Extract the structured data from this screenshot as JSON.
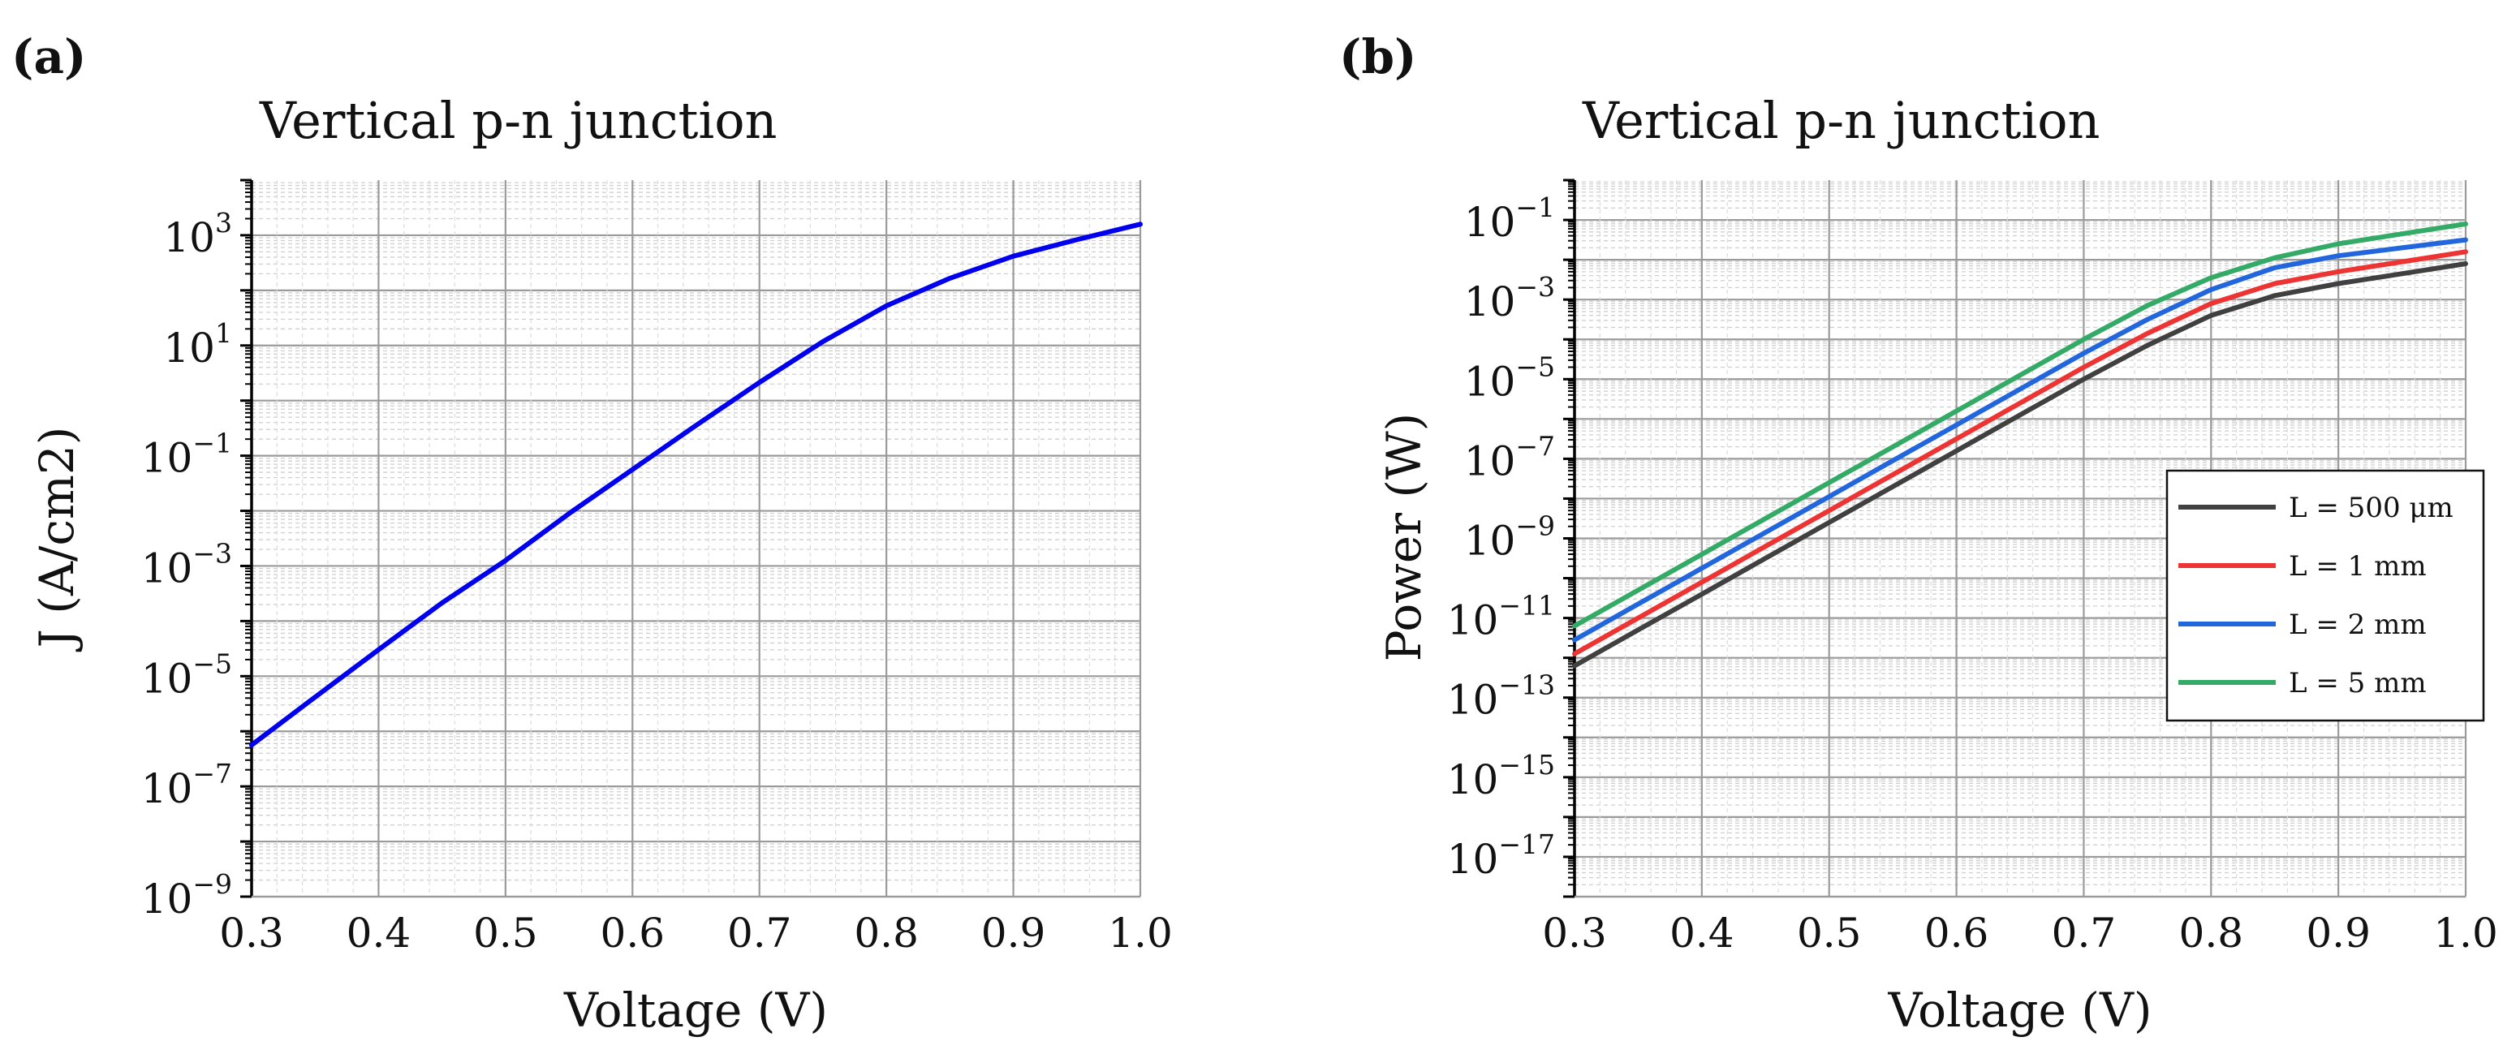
{
  "chart_data": [
    {
      "type": "line",
      "panel_label": "(a)",
      "title": "Vertical p-n junction",
      "xlabel": "Voltage (V)",
      "ylabel": "J (A/cm2)",
      "xscale": "linear",
      "yscale": "log",
      "xlim": [
        0.3,
        1.0
      ],
      "ylim_exp": [
        -9,
        4
      ],
      "x_ticks": [
        "0.3",
        "0.4",
        "0.5",
        "0.6",
        "0.7",
        "0.8",
        "0.9",
        "1.0"
      ],
      "y_ticks": [
        {
          "base": "10",
          "exp": "3"
        },
        {
          "base": "10",
          "exp": "1"
        },
        {
          "base": "10",
          "exp": "−1"
        },
        {
          "base": "10",
          "exp": "−3"
        },
        {
          "base": "10",
          "exp": "−5"
        },
        {
          "base": "10",
          "exp": "−7"
        },
        {
          "base": "10",
          "exp": "−9"
        }
      ],
      "grid": true,
      "legend": null,
      "series": [
        {
          "name": "J",
          "color": "#0000ee",
          "x": [
            0.3,
            0.35,
            0.4,
            0.45,
            0.5,
            0.55,
            0.6,
            0.65,
            0.7,
            0.75,
            0.8,
            0.85,
            0.9,
            0.95,
            1.0
          ],
          "log10_y": [
            -6.25,
            -5.38,
            -4.52,
            -3.67,
            -2.9,
            -2.05,
            -1.25,
            -0.45,
            0.33,
            1.07,
            1.72,
            2.22,
            2.62,
            2.92,
            3.2
          ]
        }
      ]
    },
    {
      "type": "line",
      "panel_label": "(b)",
      "title": "Vertical p-n junction",
      "xlabel": "Voltage (V)",
      "ylabel": "Power (W)",
      "xscale": "linear",
      "yscale": "log",
      "xlim": [
        0.3,
        1.0
      ],
      "ylim_exp": [
        -18,
        0
      ],
      "x_ticks": [
        "0.3",
        "0.4",
        "0.5",
        "0.6",
        "0.7",
        "0.8",
        "0.9",
        "1.0"
      ],
      "y_ticks": [
        {
          "base": "10",
          "exp": "−1"
        },
        {
          "base": "10",
          "exp": "−3"
        },
        {
          "base": "10",
          "exp": "−5"
        },
        {
          "base": "10",
          "exp": "−7"
        },
        {
          "base": "10",
          "exp": "−9"
        },
        {
          "base": "10",
          "exp": "−11"
        },
        {
          "base": "10",
          "exp": "−13"
        },
        {
          "base": "10",
          "exp": "−15"
        },
        {
          "base": "10",
          "exp": "−17"
        }
      ],
      "grid": true,
      "legend": "right",
      "series": [
        {
          "name": "L = 500 μm",
          "color": "#404040",
          "x": [
            0.3,
            0.35,
            0.4,
            0.45,
            0.5,
            0.55,
            0.6,
            0.65,
            0.7,
            0.75,
            0.8,
            0.85,
            0.9,
            0.95,
            1.0
          ],
          "log10_y": [
            -12.2,
            -11.3,
            -10.4,
            -9.5,
            -8.6,
            -7.7,
            -6.8,
            -5.9,
            -5.0,
            -4.15,
            -3.4,
            -2.9,
            -2.6,
            -2.35,
            -2.1
          ]
        },
        {
          "name": "L = 1 mm",
          "color": "#ee3333",
          "x": [
            0.3,
            0.35,
            0.4,
            0.45,
            0.5,
            0.55,
            0.6,
            0.65,
            0.7,
            0.75,
            0.8,
            0.85,
            0.9,
            0.95,
            1.0
          ],
          "log10_y": [
            -11.9,
            -11.0,
            -10.1,
            -9.2,
            -8.3,
            -7.4,
            -6.5,
            -5.6,
            -4.7,
            -3.85,
            -3.1,
            -2.6,
            -2.3,
            -2.05,
            -1.8
          ]
        },
        {
          "name": "L = 2 mm",
          "color": "#2266dd",
          "x": [
            0.3,
            0.35,
            0.4,
            0.45,
            0.5,
            0.55,
            0.6,
            0.65,
            0.7,
            0.75,
            0.8,
            0.85,
            0.9,
            0.95,
            1.0
          ],
          "log10_y": [
            -11.55,
            -10.65,
            -9.75,
            -8.85,
            -7.95,
            -7.05,
            -6.15,
            -5.25,
            -4.35,
            -3.5,
            -2.75,
            -2.2,
            -1.9,
            -1.7,
            -1.5
          ]
        },
        {
          "name": "L = 5 mm",
          "color": "#33aa66",
          "x": [
            0.3,
            0.35,
            0.4,
            0.45,
            0.5,
            0.55,
            0.6,
            0.65,
            0.7,
            0.75,
            0.8,
            0.85,
            0.9,
            0.95,
            1.0
          ],
          "log10_y": [
            -11.2,
            -10.3,
            -9.4,
            -8.5,
            -7.6,
            -6.7,
            -5.8,
            -4.9,
            -4.0,
            -3.15,
            -2.45,
            -1.95,
            -1.6,
            -1.35,
            -1.1
          ]
        }
      ]
    }
  ]
}
